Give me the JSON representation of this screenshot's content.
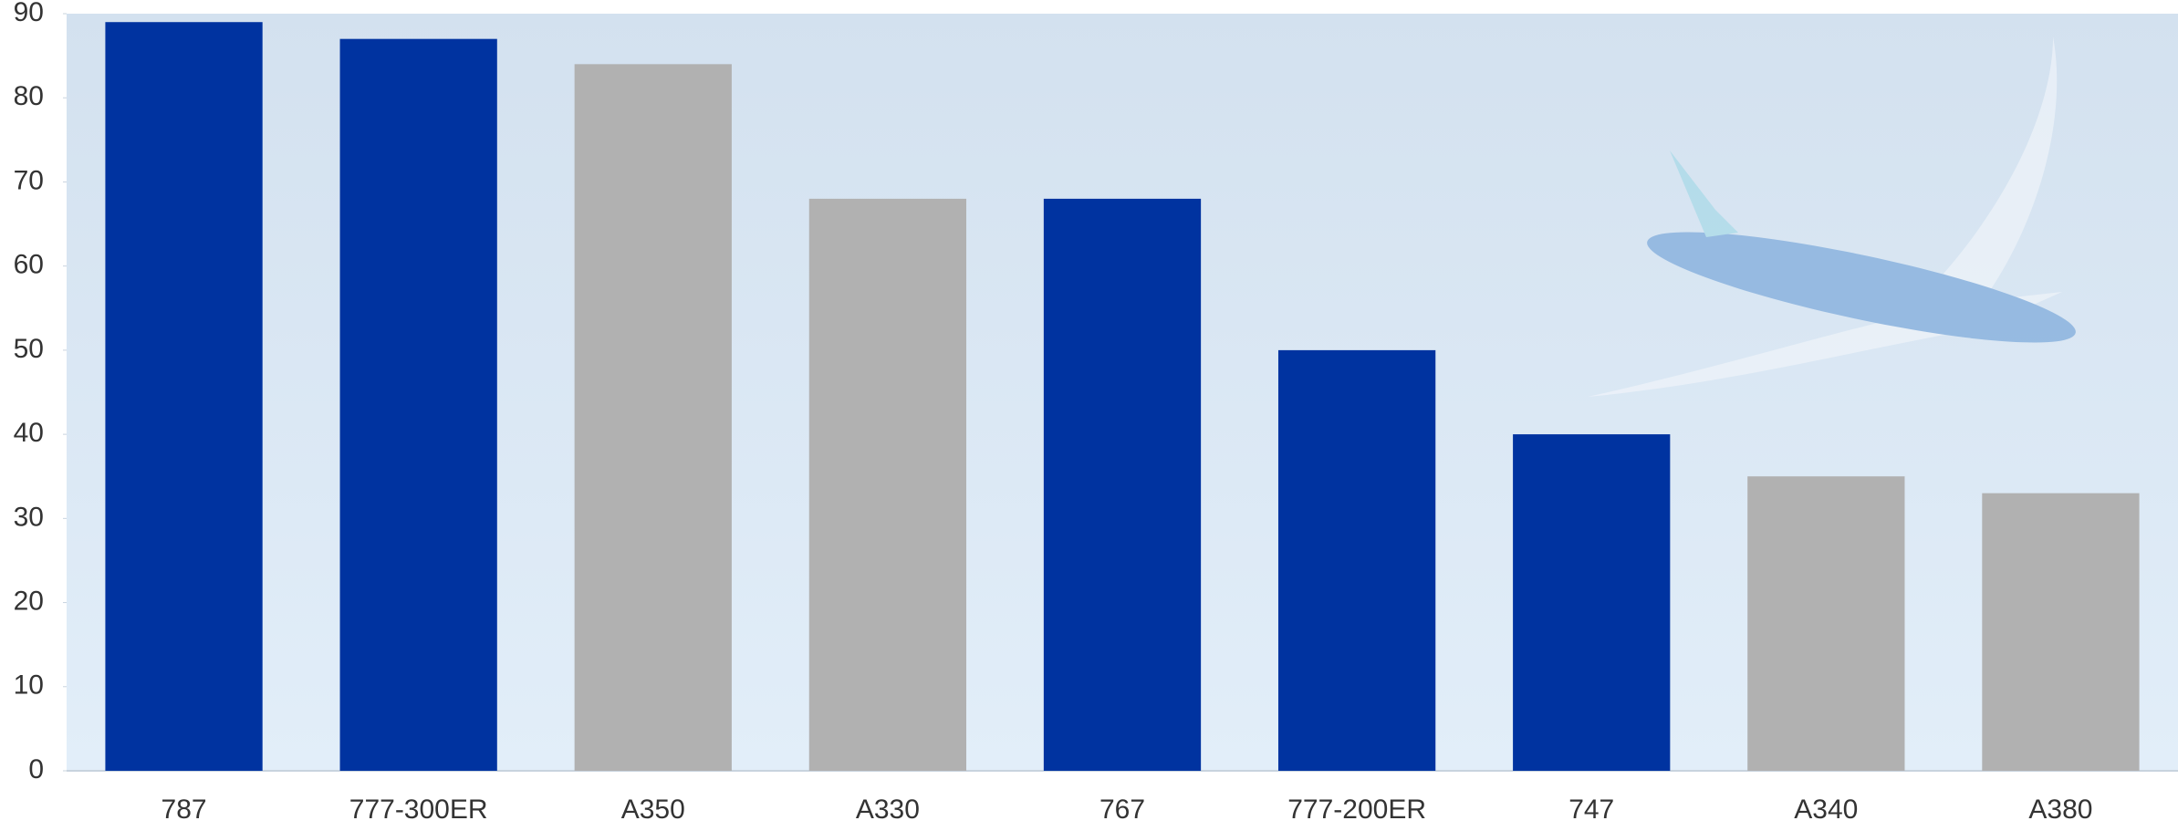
{
  "chart_data": {
    "type": "bar",
    "categories": [
      "787",
      "777-300ER",
      "A350",
      "A330",
      "767",
      "777-200ER",
      "747",
      "A340",
      "A380"
    ],
    "values": [
      89,
      87,
      84,
      68,
      68,
      50,
      40,
      35,
      33
    ],
    "colors": [
      "#0033a0",
      "#0033a0",
      "#b1b1b1",
      "#b1b1b1",
      "#0033a0",
      "#0033a0",
      "#0033a0",
      "#b1b1b1",
      "#b1b1b1"
    ],
    "ylim": [
      0,
      90
    ],
    "yticks": [
      0,
      10,
      20,
      30,
      40,
      50,
      60,
      70,
      80,
      90
    ],
    "grid": false
  }
}
